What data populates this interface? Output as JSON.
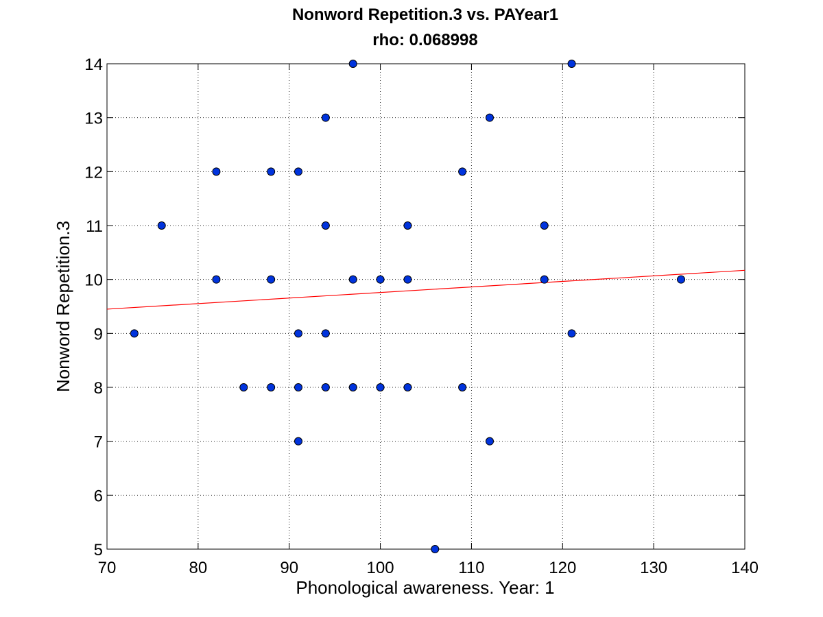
{
  "chart_data": {
    "type": "scatter",
    "title": "Nonword Repetition.3 vs. PAYear1",
    "subtitle": "rho: 0.068998",
    "xlabel": "Phonological awareness. Year: 1",
    "ylabel": "Nonword Repetition.3",
    "xlim": [
      70,
      140
    ],
    "ylim": [
      5,
      14
    ],
    "xticks": [
      70,
      80,
      90,
      100,
      110,
      120,
      130,
      140
    ],
    "yticks": [
      5,
      6,
      7,
      8,
      9,
      10,
      11,
      12,
      13,
      14
    ],
    "grid": true,
    "marker_color": "#0033dd",
    "fit_line_color": "#ff0000",
    "fit_line": {
      "x": [
        70,
        140
      ],
      "y": [
        9.45,
        10.17
      ]
    },
    "points": [
      {
        "x": 73,
        "y": 9
      },
      {
        "x": 76,
        "y": 11
      },
      {
        "x": 82,
        "y": 12
      },
      {
        "x": 82,
        "y": 10
      },
      {
        "x": 85,
        "y": 8
      },
      {
        "x": 88,
        "y": 12
      },
      {
        "x": 88,
        "y": 10
      },
      {
        "x": 88,
        "y": 8
      },
      {
        "x": 91,
        "y": 12
      },
      {
        "x": 91,
        "y": 9
      },
      {
        "x": 91,
        "y": 8
      },
      {
        "x": 91,
        "y": 7
      },
      {
        "x": 94,
        "y": 13
      },
      {
        "x": 94,
        "y": 11
      },
      {
        "x": 94,
        "y": 9
      },
      {
        "x": 94,
        "y": 8
      },
      {
        "x": 97,
        "y": 14
      },
      {
        "x": 97,
        "y": 10
      },
      {
        "x": 97,
        "y": 8
      },
      {
        "x": 100,
        "y": 10
      },
      {
        "x": 100,
        "y": 8
      },
      {
        "x": 103,
        "y": 11
      },
      {
        "x": 103,
        "y": 10
      },
      {
        "x": 103,
        "y": 8
      },
      {
        "x": 106,
        "y": 5
      },
      {
        "x": 109,
        "y": 12
      },
      {
        "x": 109,
        "y": 8
      },
      {
        "x": 112,
        "y": 13
      },
      {
        "x": 112,
        "y": 7
      },
      {
        "x": 118,
        "y": 11
      },
      {
        "x": 118,
        "y": 10
      },
      {
        "x": 121,
        "y": 14
      },
      {
        "x": 121,
        "y": 9
      },
      {
        "x": 133,
        "y": 10
      }
    ]
  }
}
